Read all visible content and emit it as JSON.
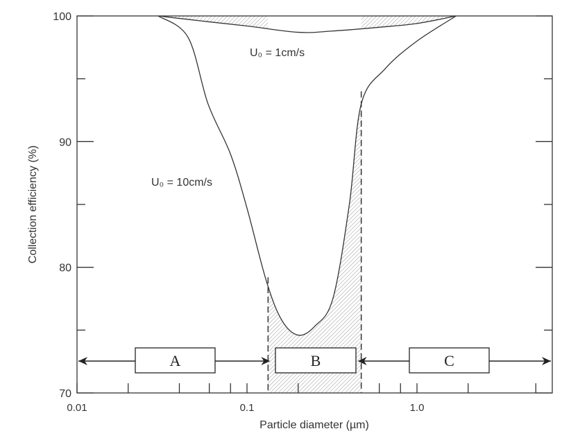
{
  "chart_data": {
    "type": "line",
    "title": "",
    "xlabel": "Particle diameter (µm)",
    "ylabel": "Collection efficiency (%)",
    "xscale": "log",
    "xlim": [
      0.01,
      6
    ],
    "ylim": [
      70,
      100
    ],
    "x_tick_labels": [
      {
        "value": 0.01,
        "label": "0.01"
      },
      {
        "value": 0.1,
        "label": "0.1"
      },
      {
        "value": 1.0,
        "label": "1.0"
      }
    ],
    "x_minor_ticks": [
      0.02,
      0.04,
      0.06,
      0.08,
      0.2,
      0.6,
      0.8,
      2,
      5
    ],
    "y_tick_labels": [
      {
        "value": 70,
        "label": "70"
      },
      {
        "value": 80,
        "label": "80"
      },
      {
        "value": 90,
        "label": "90"
      },
      {
        "value": 100,
        "label": "100"
      }
    ],
    "y_minor_ticks": [
      75,
      85,
      95
    ],
    "series": [
      {
        "name": "U0 = 10cm/s",
        "label": "U₀ = 10cm/s",
        "x": [
          0.03,
          0.045,
          0.059,
          0.08,
          0.1,
          0.13,
          0.16,
          0.2,
          0.25,
          0.32,
          0.4,
          0.47,
          0.65,
          1.0,
          1.7
        ],
        "y": [
          100,
          98.3,
          93,
          89,
          84.7,
          78.9,
          75.8,
          74.6,
          75.3,
          77.5,
          85,
          93,
          95.8,
          98,
          100
        ]
      },
      {
        "name": "U0 = 1cm/s",
        "label": "U₀ = 1cm/s",
        "x": [
          0.03,
          0.054,
          0.1,
          0.2,
          0.32,
          0.6,
          1.0,
          1.7
        ],
        "y": [
          100,
          99.6,
          99.2,
          98.7,
          98.8,
          99.1,
          99.4,
          100
        ]
      }
    ],
    "regions": [
      {
        "label": "A",
        "from": 0.01,
        "to": 0.133
      },
      {
        "label": "B",
        "from": 0.133,
        "to": 0.47,
        "hatched": true
      },
      {
        "label": "C",
        "from": 0.47,
        "to": 6
      }
    ],
    "shaded_gap": "between U0 = 1cm/s curve and 100%",
    "grid": false
  }
}
